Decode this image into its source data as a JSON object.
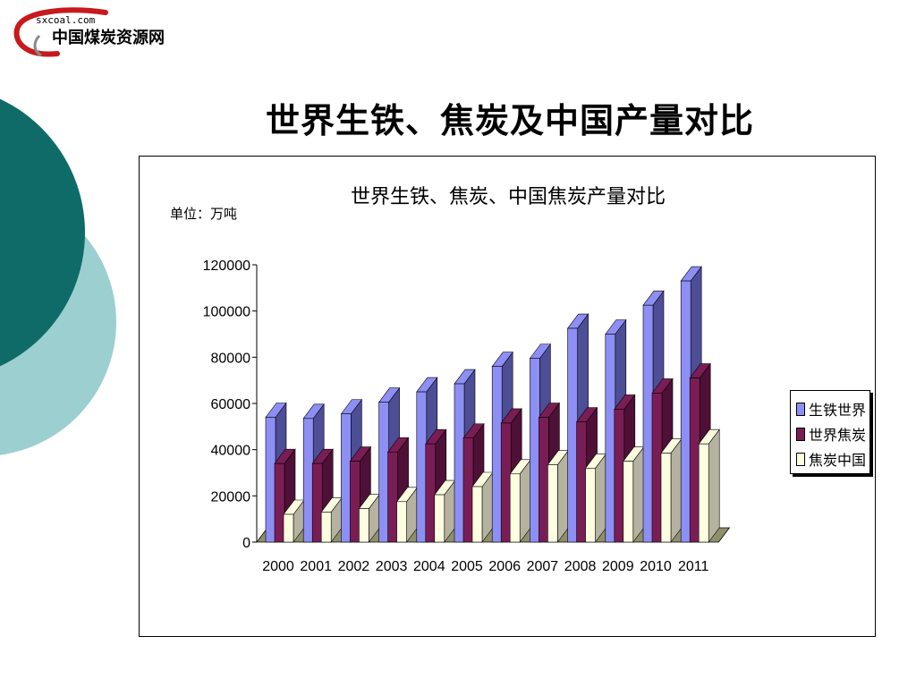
{
  "logo": {
    "domain": "sxcoal.com",
    "name": "中国煤炭资源网"
  },
  "slide": {
    "title": "世界生铁、焦炭及中国产量对比"
  },
  "colors": {
    "series": [
      "#8d8ff5",
      "#7a1d55",
      "#fdfde0"
    ],
    "series_dark": [
      "#4d4e96",
      "#4e1037",
      "#b5b3a0"
    ],
    "floor": "#8f8f6a",
    "deco_dark": "#0e6b68",
    "deco_light": "#9ccfd0"
  },
  "chart_data": {
    "type": "bar",
    "title": "世界生铁、焦炭、中国焦炭产量对比",
    "unit_label": "单位：万吨",
    "categories": [
      "2000",
      "2001",
      "2002",
      "2003",
      "2004",
      "2005",
      "2006",
      "2007",
      "2008",
      "2009",
      "2010",
      "2011"
    ],
    "series": [
      {
        "name": "生铁世界",
        "values": [
          54000,
          53500,
          55500,
          60500,
          65000,
          68500,
          76000,
          79500,
          92500,
          90000,
          102500,
          113000
        ]
      },
      {
        "name": "世界焦炭",
        "values": [
          34000,
          34000,
          35000,
          39000,
          42500,
          45000,
          51500,
          54000,
          52000,
          57500,
          64500,
          71000
        ]
      },
      {
        "name": "焦炭中国",
        "values": [
          12000,
          13000,
          14500,
          17500,
          20500,
          24000,
          29500,
          33500,
          32000,
          35000,
          38500,
          42500
        ]
      }
    ],
    "ylim": [
      0,
      120000
    ],
    "yticks": [
      0,
      20000,
      40000,
      60000,
      80000,
      100000,
      120000
    ],
    "legend": "right",
    "grid": false
  }
}
